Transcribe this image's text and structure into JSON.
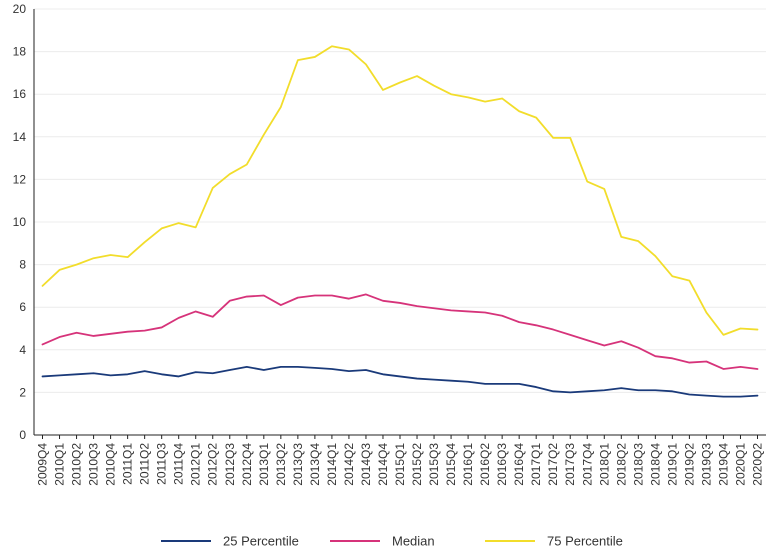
{
  "chart_data": {
    "type": "line",
    "title": "",
    "xlabel": "",
    "ylabel": "",
    "ylim": [
      0,
      20
    ],
    "yticks": [
      0,
      2,
      4,
      6,
      8,
      10,
      12,
      14,
      16,
      18,
      20
    ],
    "grid": true,
    "legend_position": "bottom",
    "categories": [
      "2009Q4",
      "2010Q1",
      "2010Q2",
      "2010Q3",
      "2010Q4",
      "2011Q1",
      "2011Q2",
      "2011Q3",
      "2011Q4",
      "2012Q1",
      "2012Q2",
      "2012Q3",
      "2012Q4",
      "2013Q1",
      "2013Q2",
      "2013Q3",
      "2013Q4",
      "2014Q1",
      "2014Q2",
      "2014Q3",
      "2014Q4",
      "2015Q1",
      "2015Q2",
      "2015Q3",
      "2015Q4",
      "2016Q1",
      "2016Q2",
      "2016Q3",
      "2016Q4",
      "2017Q1",
      "2017Q2",
      "2017Q3",
      "2017Q4",
      "2018Q1",
      "2018Q2",
      "2018Q3",
      "2018Q4",
      "2019Q1",
      "2019Q2",
      "2019Q3",
      "2019Q4",
      "2020Q1",
      "2020Q2"
    ],
    "series": [
      {
        "name": "25 Percentile",
        "color": "#1a3a7a",
        "values": [
          2.75,
          2.8,
          2.85,
          2.9,
          2.8,
          2.85,
          3.0,
          2.85,
          2.75,
          2.95,
          2.9,
          3.05,
          3.2,
          3.05,
          3.2,
          3.2,
          3.15,
          3.1,
          3.0,
          3.05,
          2.85,
          2.75,
          2.65,
          2.6,
          2.55,
          2.5,
          2.4,
          2.4,
          2.4,
          2.25,
          2.05,
          2.0,
          2.05,
          2.1,
          2.2,
          2.1,
          2.1,
          2.05,
          1.9,
          1.85,
          1.8,
          1.8,
          1.85
        ]
      },
      {
        "name": "Median",
        "color": "#d6337a",
        "values": [
          4.25,
          4.6,
          4.8,
          4.65,
          4.75,
          4.85,
          4.9,
          5.05,
          5.5,
          5.8,
          5.55,
          6.3,
          6.5,
          6.55,
          6.1,
          6.45,
          6.55,
          6.55,
          6.4,
          6.6,
          6.3,
          6.2,
          6.05,
          5.95,
          5.85,
          5.8,
          5.75,
          5.6,
          5.3,
          5.15,
          4.95,
          4.7,
          4.45,
          4.2,
          4.4,
          4.1,
          3.7,
          3.6,
          3.4,
          3.45,
          3.1,
          3.2,
          3.1
        ]
      },
      {
        "name": "75 Percentile",
        "color": "#f2dd2b",
        "values": [
          7.0,
          7.75,
          8.0,
          8.3,
          8.45,
          8.35,
          9.05,
          9.7,
          9.95,
          9.75,
          11.6,
          12.25,
          12.7,
          14.1,
          15.4,
          17.6,
          17.75,
          18.25,
          18.1,
          17.4,
          16.2,
          16.55,
          16.85,
          16.4,
          16.0,
          15.85,
          15.65,
          15.8,
          15.2,
          14.9,
          13.95,
          13.95,
          11.9,
          11.55,
          9.3,
          9.1,
          8.4,
          7.45,
          7.25,
          5.75,
          4.7,
          5.0,
          4.95
        ]
      }
    ]
  }
}
